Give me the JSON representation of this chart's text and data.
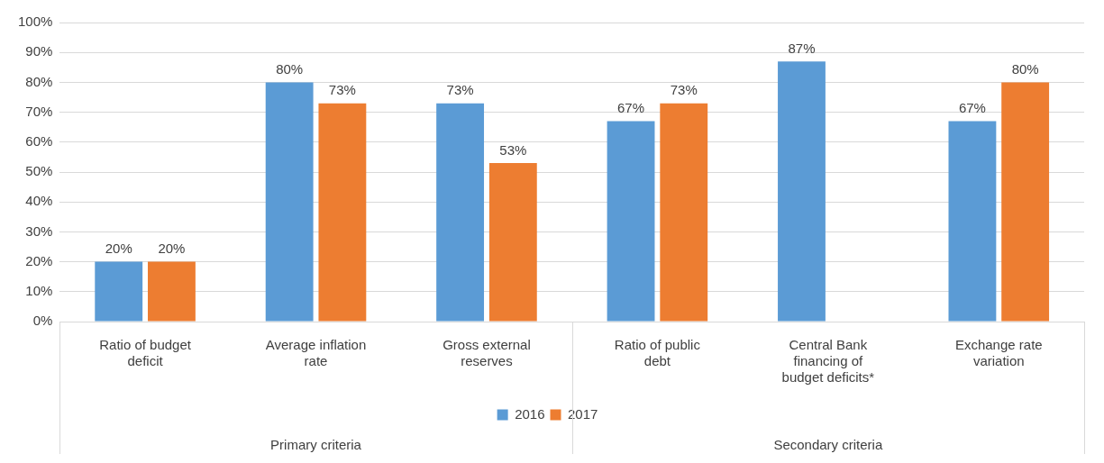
{
  "chart_data": {
    "type": "bar",
    "categories": [
      "Ratio of budget deficit",
      "Average inflation rate",
      "Gross external reserves",
      "Ratio of public debt",
      "Central Bank financing of budget deficits*",
      "Exchange rate variation"
    ],
    "series": [
      {
        "name": "2016",
        "color": "#5b9bd5",
        "values": [
          20,
          80,
          73,
          67,
          87,
          67
        ],
        "value_labels": [
          "20%",
          "80%",
          "73%",
          "67%",
          "87%",
          "67%"
        ]
      },
      {
        "name": "2017",
        "color": "#ed7d31",
        "values": [
          20,
          73,
          53,
          73,
          null,
          80
        ],
        "value_labels": [
          "20%",
          "73%",
          "53%",
          "73%",
          null,
          "80%"
        ]
      }
    ],
    "ylim": [
      0,
      100
    ],
    "yticks": [
      {
        "value": 0,
        "label": "0%"
      },
      {
        "value": 10,
        "label": "10%"
      },
      {
        "value": 20,
        "label": "20%"
      },
      {
        "value": 30,
        "label": "30%"
      },
      {
        "value": 40,
        "label": "40%"
      },
      {
        "value": 50,
        "label": "50%"
      },
      {
        "value": 60,
        "label": "60%"
      },
      {
        "value": 70,
        "label": "70%"
      },
      {
        "value": 80,
        "label": "80%"
      },
      {
        "value": 90,
        "label": "90%"
      },
      {
        "value": 100,
        "label": "100%"
      }
    ],
    "grid": "y",
    "legend": "bottom",
    "annotations": [
      "Primary criteria",
      "Secondary criteria"
    ]
  }
}
